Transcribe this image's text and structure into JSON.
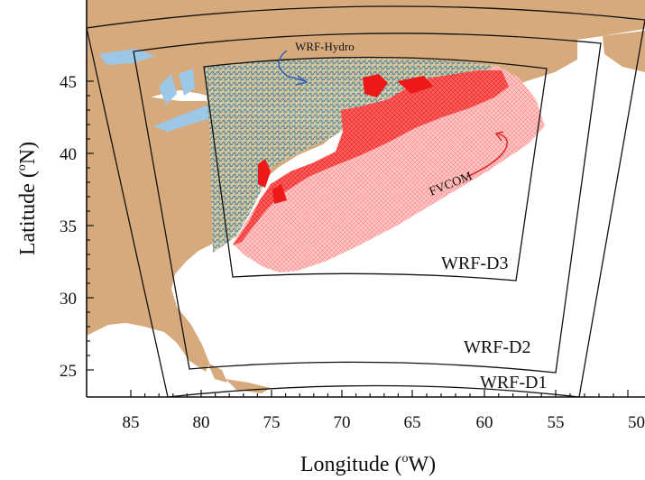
{
  "axes": {
    "xlabel_main": "Longitude (",
    "xlabel_sup": "o",
    "xlabel_tail": "W)",
    "ylabel_main": "Latitude (",
    "ylabel_sup": "o",
    "ylabel_tail": "N)",
    "x_ticks": [
      "85",
      "80",
      "75",
      "70",
      "65",
      "60",
      "55",
      "50"
    ],
    "y_ticks": [
      "45",
      "40",
      "35",
      "30",
      "25"
    ]
  },
  "domains": {
    "d1": "WRF-D1",
    "d2": "WRF-D2",
    "d3": "WRF-D3"
  },
  "models": {
    "hydro": "WRF-Hydro",
    "fvcom": "FVCOM"
  },
  "colors": {
    "land": "#d6aa7d",
    "lakes": "#9cc7e6",
    "hydro_mesh": "#5f8ea6",
    "fvcom_mesh": "#ef1c1c",
    "hydro_arrow": "#2a58b8",
    "fvcom_arrow": "#d82020",
    "domain_outline": "#111111"
  }
}
